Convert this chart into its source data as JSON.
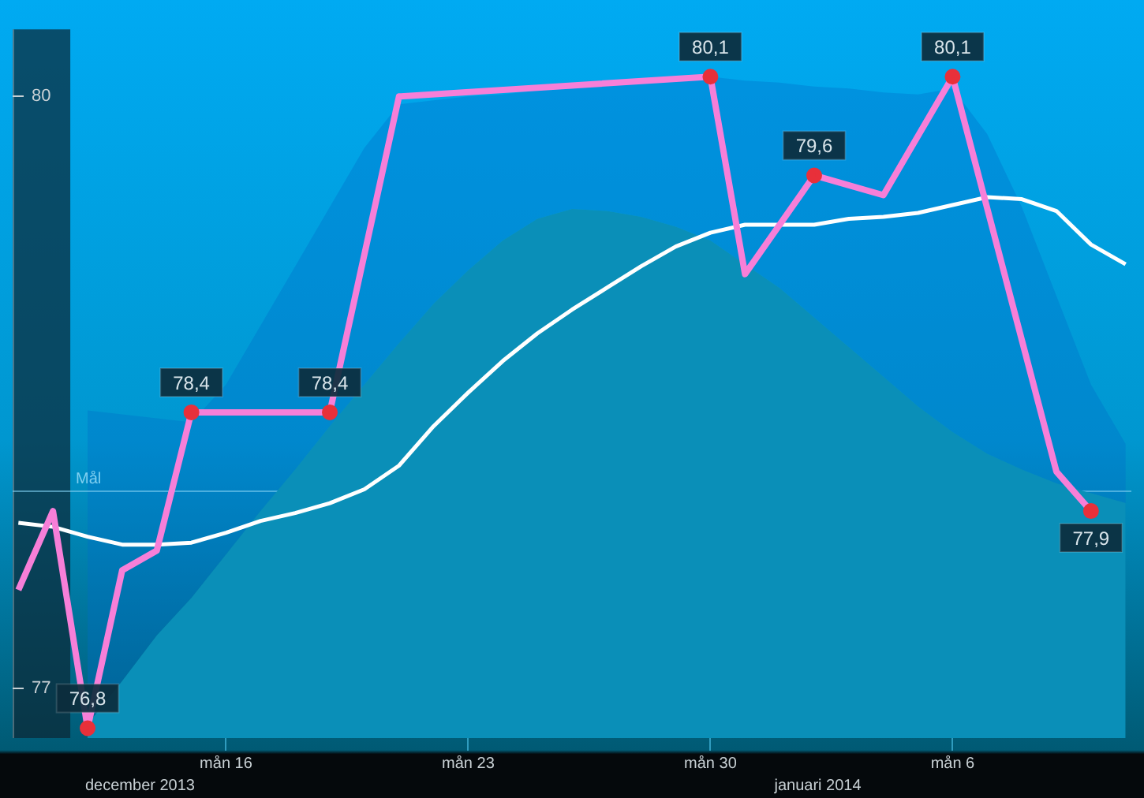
{
  "chart_data": {
    "type": "line",
    "xlim": [
      "2013-12-09T20:00",
      "2014-01-11T04:00"
    ],
    "ylim": [
      76.75,
      80.34
    ],
    "yticks": [
      80,
      77
    ],
    "xticks": [
      {
        "value": "2013-12-16",
        "label": "mån 16"
      },
      {
        "value": "2013-12-23",
        "label": "mån 23"
      },
      {
        "value": "2013-12-30",
        "label": "mån 30"
      },
      {
        "value": "2014-01-06",
        "label": "mån 6"
      }
    ],
    "series": [
      {
        "type": "area",
        "color": "#0a8fb8",
        "x": [
          "2013-12-12",
          "2013-12-13",
          "2013-12-14",
          "2013-12-15",
          "2013-12-16",
          "2013-12-17",
          "2013-12-18",
          "2013-12-19",
          "2013-12-20",
          "2013-12-21",
          "2013-12-22",
          "2013-12-23",
          "2013-12-24",
          "2013-12-25",
          "2013-12-26",
          "2013-12-27",
          "2013-12-28",
          "2013-12-29",
          "2013-12-30",
          "2013-12-31",
          "2014-01-01",
          "2014-01-02",
          "2014-01-03",
          "2014-01-04",
          "2014-01-05",
          "2014-01-06",
          "2014-01-07",
          "2014-01-08",
          "2014-01-09",
          "2014-01-10",
          "2014-01-11"
        ],
        "values": [
          76.82,
          77.04,
          77.27,
          77.46,
          77.68,
          77.9,
          78.11,
          78.33,
          78.54,
          78.75,
          78.95,
          79.12,
          79.27,
          79.38,
          79.43,
          79.42,
          79.39,
          79.34,
          79.27,
          79.15,
          79.03,
          78.88,
          78.73,
          78.58,
          78.43,
          78.3,
          78.19,
          78.11,
          78.04,
          77.99,
          77.94
        ]
      },
      {
        "color": "#ffffff",
        "x": [
          "2013-12-10",
          "2013-12-11",
          "2013-12-12",
          "2013-12-13",
          "2013-12-14",
          "2013-12-15",
          "2013-12-16",
          "2013-12-17",
          "2013-12-18",
          "2013-12-19",
          "2013-12-20",
          "2013-12-21",
          "2013-12-22",
          "2013-12-23",
          "2013-12-24",
          "2013-12-25",
          "2013-12-26",
          "2013-12-27",
          "2013-12-28",
          "2013-12-29",
          "2013-12-30",
          "2013-12-31",
          "2014-01-01",
          "2014-01-02",
          "2014-01-03",
          "2014-01-04",
          "2014-01-05",
          "2014-01-06",
          "2014-01-07",
          "2014-01-08",
          "2014-01-09",
          "2014-01-10",
          "2014-01-11"
        ],
        "values": [
          77.84,
          77.82,
          77.77,
          77.73,
          77.73,
          77.74,
          77.79,
          77.85,
          77.89,
          77.94,
          78.01,
          78.13,
          78.33,
          78.5,
          78.66,
          78.8,
          78.92,
          79.03,
          79.14,
          79.24,
          79.31,
          79.35,
          79.35,
          79.35,
          79.38,
          79.39,
          79.41,
          79.45,
          79.49,
          79.48,
          79.42,
          79.25,
          79.15
        ],
        "lower": [
          null,
          null,
          76.82,
          77.04,
          77.27,
          77.46,
          77.68,
          77.9,
          78.11,
          78.33,
          78.54,
          78.75,
          78.95,
          79.12,
          79.27,
          79.38,
          79.43,
          79.42,
          79.39,
          79.34,
          79.27,
          79.15,
          79.03,
          78.88,
          78.73,
          78.58,
          78.43,
          78.3,
          78.19,
          78.11,
          78.04,
          77.99,
          77.94
        ],
        "upper": [
          null,
          null,
          78.41,
          78.39,
          78.37,
          78.35,
          78.54,
          78.84,
          79.14,
          79.44,
          79.74,
          79.96,
          79.98,
          80.0,
          80.01,
          80.03,
          80.04,
          80.06,
          80.07,
          80.09,
          80.1,
          80.08,
          80.07,
          80.05,
          80.04,
          80.02,
          80.01,
          80.04,
          79.81,
          79.44,
          78.99,
          78.54,
          78.24
        ]
      },
      {
        "type": "line",
        "color": "#f77fd8",
        "x": [
          "2013-12-10",
          "2013-12-11",
          "2013-12-12",
          "2013-12-13",
          "2013-12-14",
          "2013-12-15",
          "2013-12-19",
          "2013-12-21",
          "2013-12-30",
          "2013-12-31",
          "2014-01-02",
          "2014-01-04",
          "2014-01-06",
          "2014-01-09",
          "2014-01-10"
        ],
        "values": [
          77.5,
          77.9,
          76.8,
          77.6,
          77.7,
          78.4,
          78.4,
          80.0,
          80.1,
          79.1,
          79.6,
          79.5,
          80.1,
          78.1,
          77.9
        ],
        "value_labels": [
          null,
          null,
          "76,8",
          null,
          null,
          "78,4",
          "78,4",
          null,
          "80,1",
          null,
          "79,6",
          null,
          "80,1",
          null,
          "77,9"
        ]
      }
    ],
    "ref_lines": [
      {
        "axis": "y",
        "value": 78.0,
        "label": "Mål",
        "color": "#7fcff0"
      }
    ],
    "bands": [
      {
        "axis": "x",
        "from": "2013-12-09T20:00",
        "to": "2013-12-11T12:00",
        "color": "#0b2733"
      }
    ],
    "annotations": [
      "december 2013",
      "januari 2014"
    ],
    "legend": false,
    "grid": false
  }
}
